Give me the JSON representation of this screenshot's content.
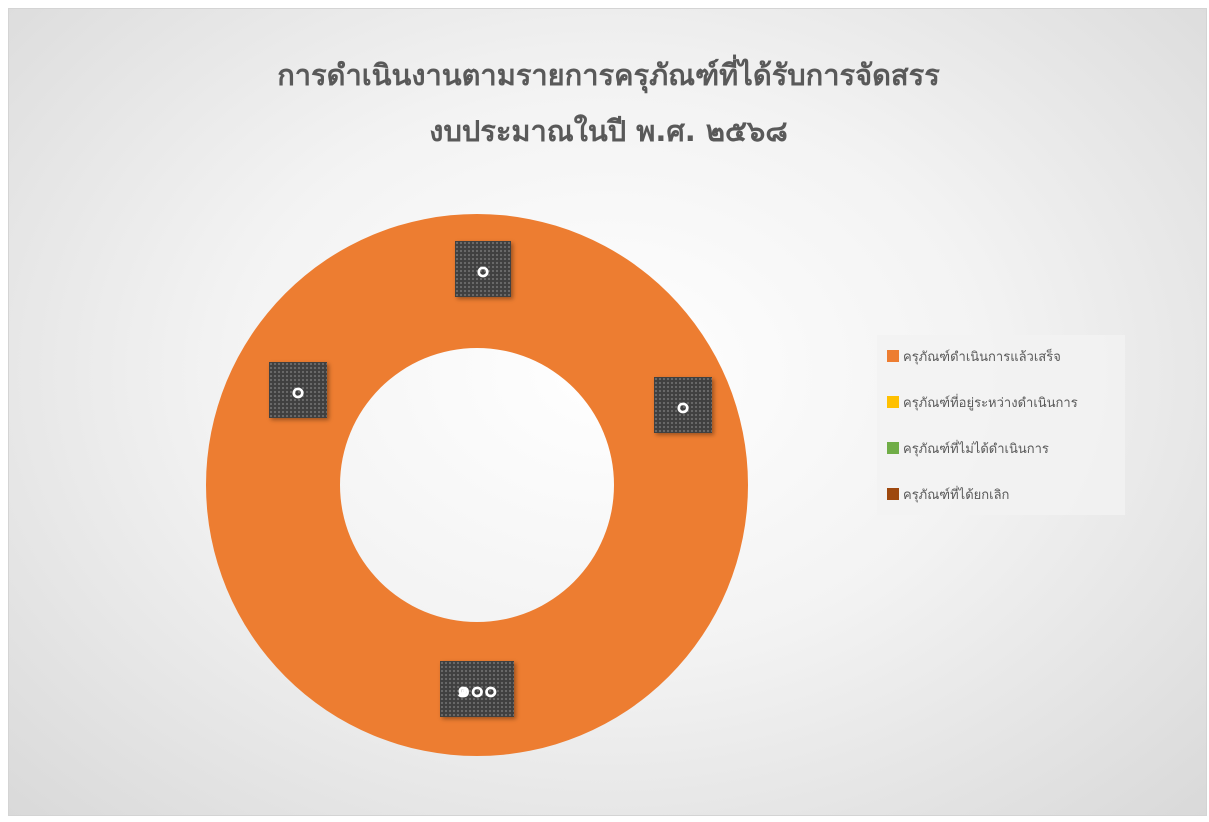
{
  "chart_data": {
    "type": "doughnut",
    "title_lines": [
      "การดำเนินงานตามรายการครุภัณฑ์ที่ได้รับการจัดสรร",
      "งบประมาณในปี พ.ศ. ๒๕๖๘"
    ],
    "legend_position": "right",
    "series": [
      {
        "categories": [
          "ครุภัณฑ์ดำเนินการแล้วเสร็จ",
          "ครุภัณฑ์ที่อยู่ระหว่างดำเนินการ",
          "ครุภัณฑ์ที่ไม่ได้ดำเนินการ",
          "ครุภัณฑ์ที่ได้ยกเลิก"
        ],
        "values": [
          100,
          0,
          0,
          0
        ],
        "data_labels": [
          "๑๐๐",
          "๐",
          "๐",
          "๐"
        ],
        "colors": [
          "#ED7D31",
          "#FFC000",
          "#70AD47",
          "#9E480E"
        ]
      }
    ]
  }
}
